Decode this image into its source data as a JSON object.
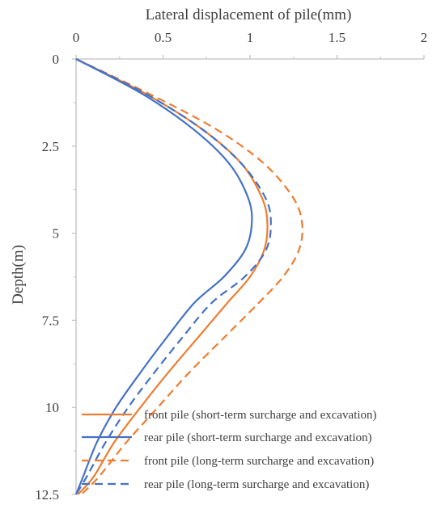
{
  "chart_data": {
    "type": "line",
    "xlabel": "Lateral displacement of pile(mm)",
    "ylabel": "Depth(m)",
    "xlim": [
      0,
      2
    ],
    "ylim": [
      0,
      12.5
    ],
    "y_inverted": true,
    "x_axis_position": "top",
    "x_ticks": [
      "0",
      "0.5",
      "1",
      "1.5",
      "2"
    ],
    "y_ticks": [
      "0",
      "2.5",
      "5",
      "7.5",
      "10",
      "12.5"
    ],
    "grid": false,
    "legend_position": "bottom-right",
    "series": [
      {
        "name": "front pile (short-term surcharge and excavation)",
        "color": "#ED7D31",
        "dash": "solid",
        "points": [
          [
            0,
            0
          ],
          [
            0.4,
            1.0
          ],
          [
            0.72,
            2.0
          ],
          [
            0.95,
            3.0
          ],
          [
            1.07,
            4.0
          ],
          [
            1.1,
            4.75
          ],
          [
            1.08,
            5.5
          ],
          [
            1.0,
            6.25
          ],
          [
            0.87,
            7.0
          ],
          [
            0.7,
            8.0
          ],
          [
            0.53,
            9.0
          ],
          [
            0.37,
            10.0
          ],
          [
            0.22,
            11.0
          ],
          [
            0.1,
            12.0
          ],
          [
            0.01,
            12.5
          ]
        ]
      },
      {
        "name": "rear pile (short-term surcharge and excavation)",
        "color": "#4472C4",
        "dash": "solid",
        "points": [
          [
            0,
            0
          ],
          [
            0.38,
            1.0
          ],
          [
            0.67,
            2.0
          ],
          [
            0.88,
            3.0
          ],
          [
            0.99,
            4.0
          ],
          [
            1.01,
            4.75
          ],
          [
            0.97,
            5.5
          ],
          [
            0.85,
            6.25
          ],
          [
            0.68,
            7.0
          ],
          [
            0.52,
            8.0
          ],
          [
            0.37,
            9.0
          ],
          [
            0.23,
            10.0
          ],
          [
            0.12,
            11.0
          ],
          [
            0.04,
            12.0
          ],
          [
            0.0,
            12.5
          ]
        ]
      },
      {
        "name": "front pile (long-term surcharge and excavation)",
        "color": "#ED7D31",
        "dash": "dashed",
        "points": [
          [
            0,
            0
          ],
          [
            0.42,
            1.0
          ],
          [
            0.8,
            2.0
          ],
          [
            1.08,
            3.0
          ],
          [
            1.25,
            4.0
          ],
          [
            1.3,
            4.75
          ],
          [
            1.28,
            5.5
          ],
          [
            1.19,
            6.25
          ],
          [
            1.05,
            7.0
          ],
          [
            0.85,
            8.0
          ],
          [
            0.65,
            9.0
          ],
          [
            0.47,
            10.0
          ],
          [
            0.29,
            11.0
          ],
          [
            0.13,
            12.0
          ],
          [
            0.03,
            12.5
          ]
        ]
      },
      {
        "name": "rear pile (long-term surcharge and excavation)",
        "color": "#4472C4",
        "dash": "dashed",
        "points": [
          [
            0,
            0
          ],
          [
            0.4,
            1.0
          ],
          [
            0.72,
            2.0
          ],
          [
            0.95,
            3.0
          ],
          [
            1.09,
            4.0
          ],
          [
            1.12,
            4.75
          ],
          [
            1.09,
            5.5
          ],
          [
            0.97,
            6.25
          ],
          [
            0.78,
            7.0
          ],
          [
            0.61,
            8.0
          ],
          [
            0.45,
            9.0
          ],
          [
            0.3,
            10.0
          ],
          [
            0.17,
            11.0
          ],
          [
            0.06,
            12.0
          ],
          [
            0.0,
            12.5
          ]
        ]
      }
    ]
  }
}
